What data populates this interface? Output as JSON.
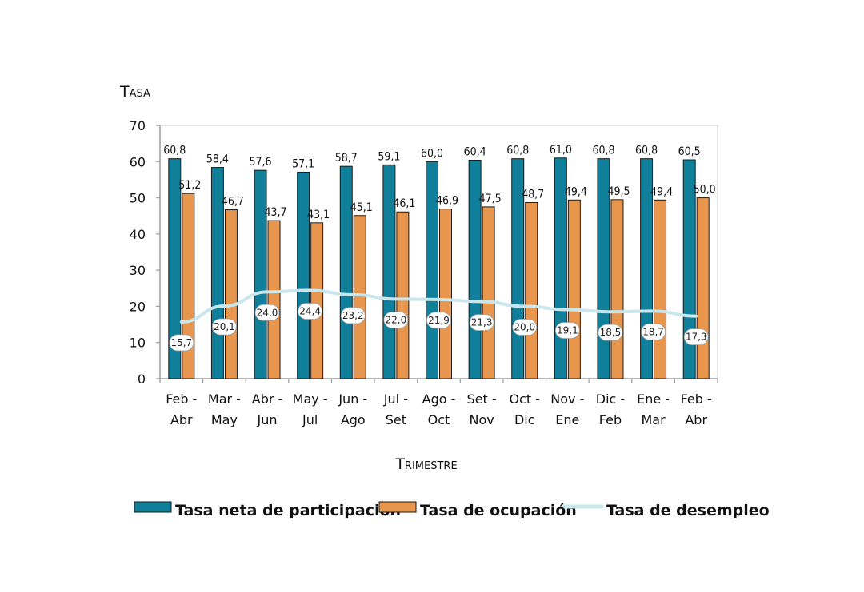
{
  "chart_data": {
    "type": "bar",
    "title": "",
    "ylabel": "Tasa",
    "xlabel": "Trimestre",
    "ylim": [
      0,
      70
    ],
    "yticks": [
      0,
      10,
      20,
      30,
      40,
      50,
      60,
      70
    ],
    "grid": false,
    "legend_position": "bottom",
    "categories": [
      [
        "Feb -",
        "Abr"
      ],
      [
        "Mar -",
        "May"
      ],
      [
        "Abr -",
        "Jun"
      ],
      [
        "May -",
        "Jul"
      ],
      [
        "Jun -",
        "Ago"
      ],
      [
        "Jul -",
        "Set"
      ],
      [
        "Ago -",
        "Oct"
      ],
      [
        "Set -",
        "Nov"
      ],
      [
        "Oct -",
        "Dic"
      ],
      [
        "Nov -",
        "Ene"
      ],
      [
        "Dic -",
        "Feb"
      ],
      [
        "Ene -",
        "Mar"
      ],
      [
        "Feb -",
        "Abr"
      ]
    ],
    "series": [
      {
        "name": "Tasa neta de participación",
        "kind": "bar",
        "color": "#0f7f9a",
        "values": [
          60.8,
          58.4,
          57.6,
          57.1,
          58.7,
          59.1,
          60.0,
          60.4,
          60.8,
          61.0,
          60.8,
          60.8,
          60.5
        ],
        "labels": [
          "60,8",
          "58,4",
          "57,6",
          "57,1",
          "58,7",
          "59,1",
          "60,0",
          "60,4",
          "60,8",
          "61,0",
          "60,8",
          "60,8",
          "60,5"
        ]
      },
      {
        "name": "Tasa de ocupación",
        "kind": "bar",
        "color": "#e8954e",
        "values": [
          51.2,
          46.7,
          43.7,
          43.1,
          45.1,
          46.1,
          46.9,
          47.5,
          48.7,
          49.4,
          49.5,
          49.4,
          50.0
        ],
        "labels": [
          "51,2",
          "46,7",
          "43,7",
          "43,1",
          "45,1",
          "46,1",
          "46,9",
          "47,5",
          "48,7",
          "49,4",
          "49,5",
          "49,4",
          "50,0"
        ]
      },
      {
        "name": "Tasa de desempleo",
        "kind": "line",
        "color": "#c8e6ec",
        "values": [
          15.7,
          20.1,
          24.0,
          24.4,
          23.2,
          22.0,
          21.9,
          21.3,
          20.0,
          19.1,
          18.5,
          18.7,
          17.3
        ],
        "labels": [
          "15,7",
          "20,1",
          "24,0",
          "24,4",
          "23,2",
          "22,0",
          "21,9",
          "21,3",
          "20,0",
          "19,1",
          "18,5",
          "18,7",
          "17,3"
        ]
      }
    ]
  }
}
